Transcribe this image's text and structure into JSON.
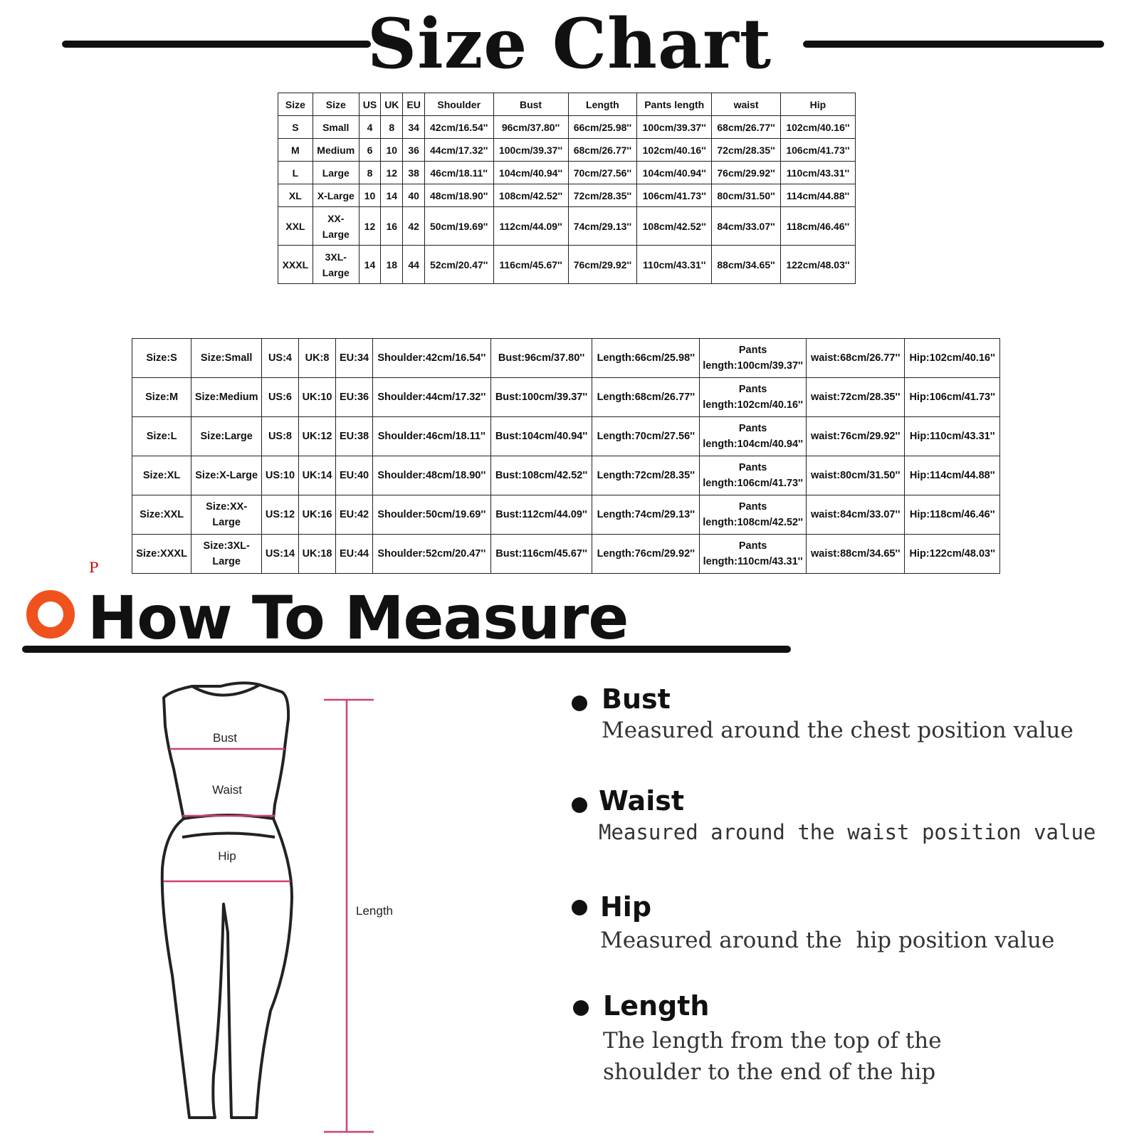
{
  "title": "Size Chart",
  "table1": {
    "header": [
      "Size",
      "Size",
      "US",
      "UK",
      "EU",
      "Shoulder",
      "Bust",
      "Length",
      "Pants length",
      "waist",
      "Hip"
    ],
    "rows": [
      [
        "S",
        "Small",
        4,
        8,
        34,
        "42cm/16.54''",
        "96cm/37.80''",
        "66cm/25.98''",
        "100cm/39.37''",
        "68cm/26.77''",
        "102cm/40.16''"
      ],
      [
        "M",
        "Medium",
        6,
        10,
        36,
        "44cm/17.32''",
        "100cm/39.37''",
        "68cm/26.77''",
        "102cm/40.16''",
        "72cm/28.35''",
        "106cm/41.73''"
      ],
      [
        "L",
        "Large",
        8,
        12,
        38,
        "46cm/18.11''",
        "104cm/40.94''",
        "70cm/27.56''",
        "104cm/40.94''",
        "76cm/29.92''",
        "110cm/43.31''"
      ],
      [
        "XL",
        "X-Large",
        10,
        14,
        40,
        "48cm/18.90''",
        "108cm/42.52''",
        "72cm/28.35''",
        "106cm/41.73''",
        "80cm/31.50''",
        "114cm/44.88''"
      ],
      [
        "XXL",
        "XX-Large",
        12,
        16,
        42,
        "50cm/19.69''",
        "112cm/44.09''",
        "74cm/29.13''",
        "108cm/42.52''",
        "84cm/33.07''",
        "118cm/46.46''"
      ],
      [
        "XXXL",
        "3XL-Large",
        14,
        18,
        44,
        "52cm/20.47''",
        "116cm/45.67''",
        "76cm/29.92''",
        "110cm/43.31''",
        "88cm/34.65''",
        "122cm/48.03''"
      ]
    ]
  },
  "table2": {
    "rows": [
      [
        "Size:S",
        "Size:Small",
        "US:4",
        "UK:8",
        "EU:34",
        "Shoulder:42cm/16.54''",
        "Bust:96cm/37.80''",
        "Length:66cm/25.98''",
        "Pants length:100cm/39.37''",
        "waist:68cm/26.77''",
        "Hip:102cm/40.16''"
      ],
      [
        "Size:M",
        "Size:Medium",
        "US:6",
        "UK:10",
        "EU:36",
        "Shoulder:44cm/17.32''",
        "Bust:100cm/39.37''",
        "Length:68cm/26.77''",
        "Pants length:102cm/40.16''",
        "waist:72cm/28.35''",
        "Hip:106cm/41.73''"
      ],
      [
        "Size:L",
        "Size:Large",
        "US:8",
        "UK:12",
        "EU:38",
        "Shoulder:46cm/18.11''",
        "Bust:104cm/40.94''",
        "Length:70cm/27.56''",
        "Pants length:104cm/40.94''",
        "waist:76cm/29.92''",
        "Hip:110cm/43.31''"
      ],
      [
        "Size:XL",
        "Size:X-Large",
        "US:10",
        "UK:14",
        "EU:40",
        "Shoulder:48cm/18.90''",
        "Bust:108cm/42.52''",
        "Length:72cm/28.35''",
        "Pants length:106cm/41.73''",
        "waist:80cm/31.50''",
        "Hip:114cm/44.88''"
      ],
      [
        "Size:XXL",
        "Size:XX-Large",
        "US:12",
        "UK:16",
        "EU:42",
        "Shoulder:50cm/19.69''",
        "Bust:112cm/44.09''",
        "Length:74cm/29.13''",
        "Pants length:108cm/42.52''",
        "waist:84cm/33.07''",
        "Hip:118cm/46.46''"
      ],
      [
        "Size:XXXL",
        "Size:3XL-Large",
        "US:14",
        "UK:18",
        "EU:44",
        "Shoulder:52cm/20.47''",
        "Bust:116cm/45.67''",
        "Length:76cm/29.92''",
        "Pants length:110cm/43.31''",
        "waist:88cm/34.65''",
        "Hip:122cm/48.03''"
      ]
    ]
  },
  "marker": "P",
  "measure": {
    "title": "How To Measure",
    "diagram": {
      "bust": "Bust",
      "waist": "Waist",
      "hip": "Hip",
      "length": "Length"
    },
    "items": [
      {
        "name": "Bust",
        "text": "Measured around the chest position value"
      },
      {
        "name": "Waist",
        "text": "Measured around the waist position value"
      },
      {
        "name": "Hip",
        "text": "Measured around the  hip position value"
      },
      {
        "name": "Length",
        "text": "The length from the top of the shoulder to the end of the hip"
      }
    ]
  }
}
